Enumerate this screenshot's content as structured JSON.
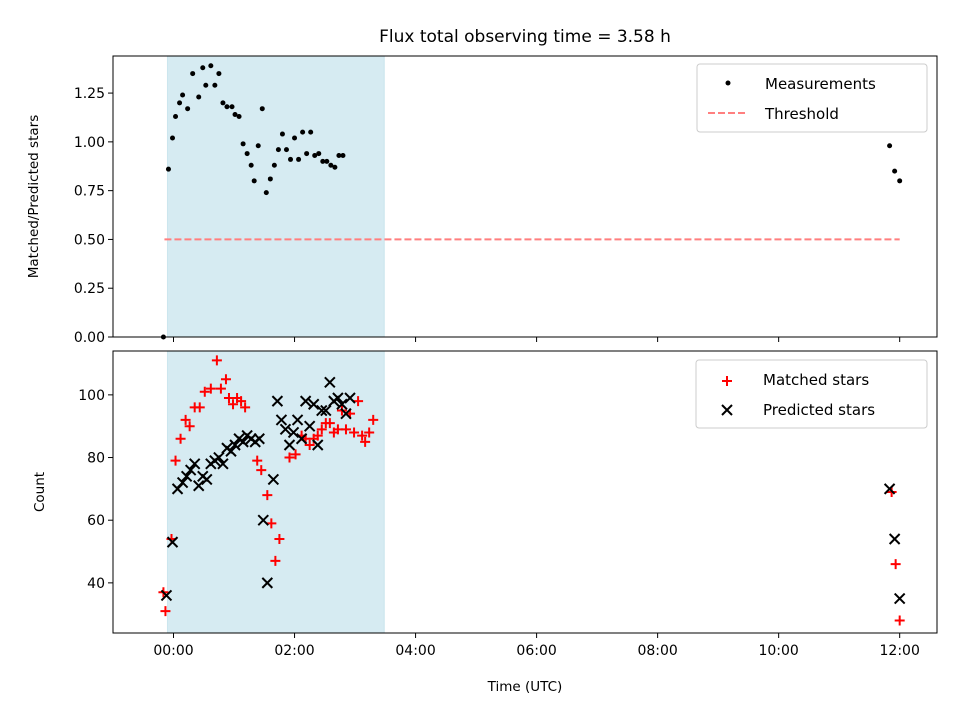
{
  "chart_data": [
    {
      "type": "scatter",
      "title": "Flux total observing time = 3.58 h",
      "xlabel": "",
      "ylabel": "Matched/Predicted stars",
      "xlim": [
        "23:00",
        "12:37"
      ],
      "ylim": [
        0,
        1.44
      ],
      "yticks": [
        0.0,
        0.25,
        0.5,
        0.75,
        1.0,
        1.25
      ],
      "ytick_labels": [
        "0.00",
        "0.25",
        "0.50",
        "0.75",
        "1.00",
        "1.25"
      ],
      "highlight_span": {
        "x": [
          "23:54",
          "03:29"
        ],
        "color": "#add8e6"
      },
      "legend_position": "top-right",
      "legend": [
        "Measurements",
        "Threshold"
      ],
      "series": [
        {
          "name": "Measurements",
          "marker": "dot",
          "color": "#000000",
          "points": [
            [
              "23:50",
              0.0
            ],
            [
              "23:55",
              0.86
            ],
            [
              "23:59",
              1.02
            ],
            [
              "00:02",
              1.13
            ],
            [
              "00:06",
              1.2
            ],
            [
              "00:09",
              1.24
            ],
            [
              "00:14",
              1.17
            ],
            [
              "00:19",
              1.35
            ],
            [
              "00:25",
              1.23
            ],
            [
              "00:29",
              1.38
            ],
            [
              "00:32",
              1.29
            ],
            [
              "00:37",
              1.39
            ],
            [
              "00:41",
              1.29
            ],
            [
              "00:45",
              1.35
            ],
            [
              "00:49",
              1.2
            ],
            [
              "00:53",
              1.18
            ],
            [
              "00:58",
              1.18
            ],
            [
              "01:01",
              1.14
            ],
            [
              "01:05",
              1.13
            ],
            [
              "01:09",
              0.99
            ],
            [
              "01:13",
              0.94
            ],
            [
              "01:17",
              0.88
            ],
            [
              "01:20",
              0.8
            ],
            [
              "01:24",
              0.98
            ],
            [
              "01:28",
              1.17
            ],
            [
              "01:32",
              0.74
            ],
            [
              "01:36",
              0.81
            ],
            [
              "01:40",
              0.88
            ],
            [
              "01:44",
              0.96
            ],
            [
              "01:48",
              1.04
            ],
            [
              "01:52",
              0.96
            ],
            [
              "01:56",
              0.91
            ],
            [
              "02:00",
              1.02
            ],
            [
              "02:04",
              0.91
            ],
            [
              "02:08",
              1.05
            ],
            [
              "02:12",
              0.94
            ],
            [
              "02:16",
              1.05
            ],
            [
              "02:20",
              0.93
            ],
            [
              "02:24",
              0.94
            ],
            [
              "02:28",
              0.9
            ],
            [
              "02:32",
              0.9
            ],
            [
              "02:36",
              0.88
            ],
            [
              "02:40",
              0.87
            ],
            [
              "02:44",
              0.93
            ],
            [
              "02:48",
              0.93
            ],
            [
              "11:50",
              0.98
            ],
            [
              "11:55",
              0.85
            ],
            [
              "12:00",
              0.8
            ]
          ]
        },
        {
          "name": "Threshold",
          "marker": "dashed-line",
          "color": "#ff7f7f",
          "points": [
            [
              "23:51",
              0.5
            ],
            [
              "12:00",
              0.5
            ]
          ]
        }
      ]
    },
    {
      "type": "scatter",
      "title": "",
      "xlabel": "Time (UTC)",
      "ylabel": "Count",
      "xlim": [
        "23:00",
        "12:37"
      ],
      "ylim": [
        24,
        114
      ],
      "xticks": [
        "00:00",
        "02:00",
        "04:00",
        "06:00",
        "08:00",
        "10:00",
        "12:00"
      ],
      "yticks": [
        40,
        60,
        80,
        100
      ],
      "ytick_labels": [
        "40",
        "60",
        "80",
        "100"
      ],
      "highlight_span": {
        "x": [
          "23:54",
          "03:29"
        ],
        "color": "#add8e6"
      },
      "legend_position": "top-right",
      "legend": [
        "Matched stars",
        "Predicted stars"
      ],
      "series": [
        {
          "name": "Matched stars",
          "marker": "plus",
          "color": "#ff0000",
          "points": [
            [
              "23:50",
              37
            ],
            [
              "23:52",
              31
            ],
            [
              "23:58",
              54
            ],
            [
              "00:02",
              79
            ],
            [
              "00:07",
              86
            ],
            [
              "00:12",
              92
            ],
            [
              "00:16",
              90
            ],
            [
              "00:21",
              96
            ],
            [
              "00:26",
              96
            ],
            [
              "00:31",
              101
            ],
            [
              "00:37",
              102
            ],
            [
              "00:43",
              111
            ],
            [
              "00:47",
              102
            ],
            [
              "00:52",
              105
            ],
            [
              "00:55",
              99
            ],
            [
              "00:59",
              97
            ],
            [
              "01:03",
              99
            ],
            [
              "01:07",
              98
            ],
            [
              "01:11",
              96
            ],
            [
              "01:23",
              79
            ],
            [
              "01:27",
              76
            ],
            [
              "01:33",
              68
            ],
            [
              "01:37",
              59
            ],
            [
              "01:41",
              47
            ],
            [
              "01:45",
              54
            ],
            [
              "01:55",
              80
            ],
            [
              "02:01",
              81
            ],
            [
              "02:07",
              87
            ],
            [
              "02:11",
              86
            ],
            [
              "02:15",
              84
            ],
            [
              "02:19",
              86
            ],
            [
              "02:23",
              87
            ],
            [
              "02:27",
              89
            ],
            [
              "02:31",
              91
            ],
            [
              "02:35",
              91
            ],
            [
              "02:39",
              88
            ],
            [
              "02:43",
              89
            ],
            [
              "02:47",
              95
            ],
            [
              "02:51",
              89
            ],
            [
              "02:55",
              94
            ],
            [
              "02:59",
              88
            ],
            [
              "03:03",
              98
            ],
            [
              "03:07",
              87
            ],
            [
              "03:10",
              85
            ],
            [
              "03:14",
              88
            ],
            [
              "03:18",
              92
            ],
            [
              "11:52",
              69
            ],
            [
              "11:56",
              46
            ],
            [
              "12:00",
              28
            ]
          ]
        },
        {
          "name": "Predicted stars",
          "marker": "x",
          "color": "#000000",
          "points": [
            [
              "23:53",
              36
            ],
            [
              "23:59",
              53
            ],
            [
              "00:04",
              70
            ],
            [
              "00:09",
              72
            ],
            [
              "00:13",
              74
            ],
            [
              "00:17",
              76
            ],
            [
              "00:21",
              78
            ],
            [
              "00:25",
              71
            ],
            [
              "00:29",
              74
            ],
            [
              "00:33",
              73
            ],
            [
              "00:37",
              78
            ],
            [
              "00:41",
              79
            ],
            [
              "00:45",
              80
            ],
            [
              "00:49",
              78
            ],
            [
              "00:53",
              83
            ],
            [
              "00:57",
              82
            ],
            [
              "01:01",
              84
            ],
            [
              "01:05",
              86
            ],
            [
              "01:09",
              85
            ],
            [
              "01:13",
              87
            ],
            [
              "01:17",
              86
            ],
            [
              "01:21",
              85
            ],
            [
              "01:25",
              86
            ],
            [
              "01:29",
              60
            ],
            [
              "01:33",
              40
            ],
            [
              "01:39",
              73
            ],
            [
              "01:43",
              98
            ],
            [
              "01:47",
              92
            ],
            [
              "01:51",
              89
            ],
            [
              "01:55",
              84
            ],
            [
              "01:59",
              88
            ],
            [
              "02:03",
              92
            ],
            [
              "02:07",
              86
            ],
            [
              "02:11",
              98
            ],
            [
              "02:15",
              90
            ],
            [
              "02:19",
              97
            ],
            [
              "02:23",
              84
            ],
            [
              "02:27",
              95
            ],
            [
              "02:31",
              95
            ],
            [
              "02:35",
              104
            ],
            [
              "02:39",
              98
            ],
            [
              "02:43",
              99
            ],
            [
              "02:47",
              97
            ],
            [
              "02:51",
              94
            ],
            [
              "02:55",
              99
            ],
            [
              "11:50",
              70
            ],
            [
              "11:55",
              54
            ],
            [
              "12:00",
              35
            ]
          ]
        }
      ]
    }
  ]
}
